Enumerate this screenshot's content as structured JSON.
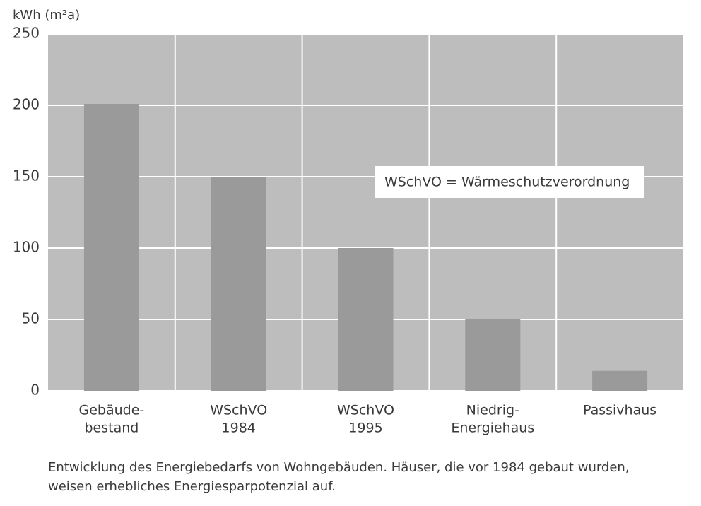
{
  "chart_data": {
    "type": "bar",
    "y_label": "kWh (m²a)",
    "categories": [
      [
        "Gebäude-",
        "bestand"
      ],
      [
        "WSchVO",
        "1984"
      ],
      [
        "WSchVO",
        "1995"
      ],
      [
        "Niedrig-",
        "Energiehaus"
      ],
      [
        "Passivhaus"
      ]
    ],
    "values": [
      201,
      150,
      100,
      50,
      14
    ],
    "color": "#9a9a9a",
    "background": "#bdbdbd",
    "ylim": [
      0,
      250
    ],
    "yticks": [
      0,
      50,
      100,
      150,
      200,
      250
    ],
    "grid": true,
    "annotation": "WSchVO = Wärmeschutzverordnung",
    "caption": [
      "Entwicklung des Energiebedarfs von Wohngebäuden. Häuser, die vor 1984 gebaut wurden,",
      "weisen erhebliches Energiesparpotenzial auf."
    ]
  }
}
